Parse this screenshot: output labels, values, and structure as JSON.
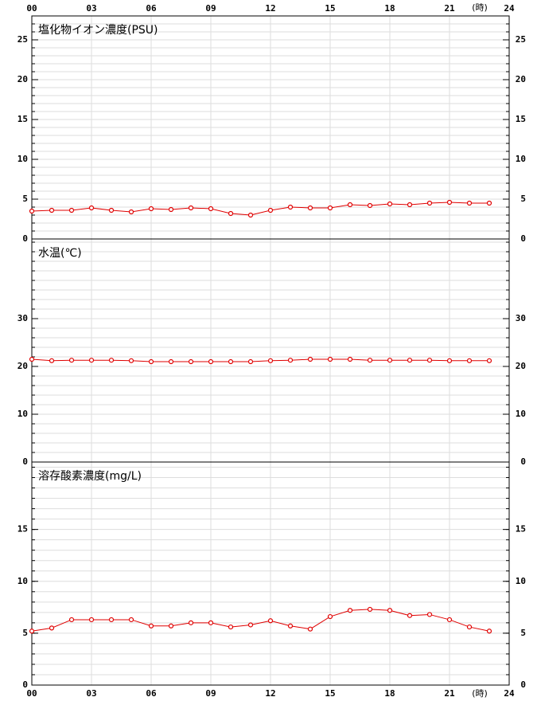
{
  "chart_data": [
    {
      "type": "line",
      "title": "塩化物イオン濃度(PSU)",
      "x_label": "(時)",
      "x": [
        0,
        1,
        2,
        3,
        4,
        5,
        6,
        7,
        8,
        9,
        10,
        11,
        12,
        13,
        14,
        15,
        16,
        17,
        18,
        19,
        20,
        21,
        22,
        23
      ],
      "values": [
        3.5,
        3.6,
        3.6,
        3.9,
        3.6,
        3.4,
        3.8,
        3.7,
        3.9,
        3.8,
        3.2,
        3.0,
        3.6,
        4.0,
        3.9,
        3.9,
        4.3,
        4.2,
        4.4,
        4.3,
        4.5,
        4.6,
        4.5,
        4.5
      ],
      "color": "#e00000",
      "xlim": [
        0,
        24
      ],
      "xticks": [
        {
          "value": 0,
          "label": "00"
        },
        {
          "value": 3,
          "label": "03"
        },
        {
          "value": 6,
          "label": "06"
        },
        {
          "value": 9,
          "label": "09"
        },
        {
          "value": 12,
          "label": "12"
        },
        {
          "value": 15,
          "label": "15"
        },
        {
          "value": 18,
          "label": "18"
        },
        {
          "value": 21,
          "label": "21"
        },
        {
          "value": 24,
          "label": "24"
        }
      ],
      "ylim": [
        0,
        28
      ],
      "yticks": [
        0,
        5,
        10,
        15,
        20,
        25
      ],
      "grid": true
    },
    {
      "type": "line",
      "title": "水温(℃)",
      "x": [
        0,
        1,
        2,
        3,
        4,
        5,
        6,
        7,
        8,
        9,
        10,
        11,
        12,
        13,
        14,
        15,
        16,
        17,
        18,
        19,
        20,
        21,
        22,
        23
      ],
      "values": [
        21.5,
        21.2,
        21.3,
        21.3,
        21.3,
        21.2,
        21.0,
        21.0,
        21.0,
        21.0,
        21.0,
        21.0,
        21.2,
        21.3,
        21.5,
        21.5,
        21.5,
        21.3,
        21.3,
        21.3,
        21.3,
        21.2,
        21.2,
        21.2
      ],
      "color": "#e00000",
      "xlim": [
        0,
        24
      ],
      "xticks": [
        {
          "value": 0,
          "label": "00"
        },
        {
          "value": 3,
          "label": "03"
        },
        {
          "value": 6,
          "label": "06"
        },
        {
          "value": 9,
          "label": "09"
        },
        {
          "value": 12,
          "label": "12"
        },
        {
          "value": 15,
          "label": "15"
        },
        {
          "value": 18,
          "label": "18"
        },
        {
          "value": 21,
          "label": "21"
        },
        {
          "value": 24,
          "label": "24"
        }
      ],
      "ylim": [
        0,
        46.67
      ],
      "yticks": [
        0,
        10,
        20,
        30
      ],
      "grid": true
    },
    {
      "type": "line",
      "title": "溶存酸素濃度(mg/L)",
      "x_label": "(時)",
      "x": [
        0,
        1,
        2,
        3,
        4,
        5,
        6,
        7,
        8,
        9,
        10,
        11,
        12,
        13,
        14,
        15,
        16,
        17,
        18,
        19,
        20,
        21,
        22,
        23
      ],
      "values": [
        5.2,
        5.5,
        6.3,
        6.3,
        6.3,
        6.3,
        5.7,
        5.7,
        6.0,
        6.0,
        5.6,
        5.8,
        6.2,
        5.7,
        5.4,
        6.6,
        7.2,
        7.3,
        7.2,
        6.7,
        6.8,
        6.3,
        5.6,
        5.2
      ],
      "color": "#e00000",
      "xlim": [
        0,
        24
      ],
      "xticks": [
        {
          "value": 0,
          "label": "00"
        },
        {
          "value": 3,
          "label": "03"
        },
        {
          "value": 6,
          "label": "06"
        },
        {
          "value": 9,
          "label": "09"
        },
        {
          "value": 12,
          "label": "12"
        },
        {
          "value": 15,
          "label": "15"
        },
        {
          "value": 18,
          "label": "18"
        },
        {
          "value": 21,
          "label": "21"
        },
        {
          "value": 24,
          "label": "24"
        }
      ],
      "ylim": [
        0,
        21.5
      ],
      "yticks": [
        0,
        5,
        10,
        15
      ],
      "grid": true
    }
  ]
}
